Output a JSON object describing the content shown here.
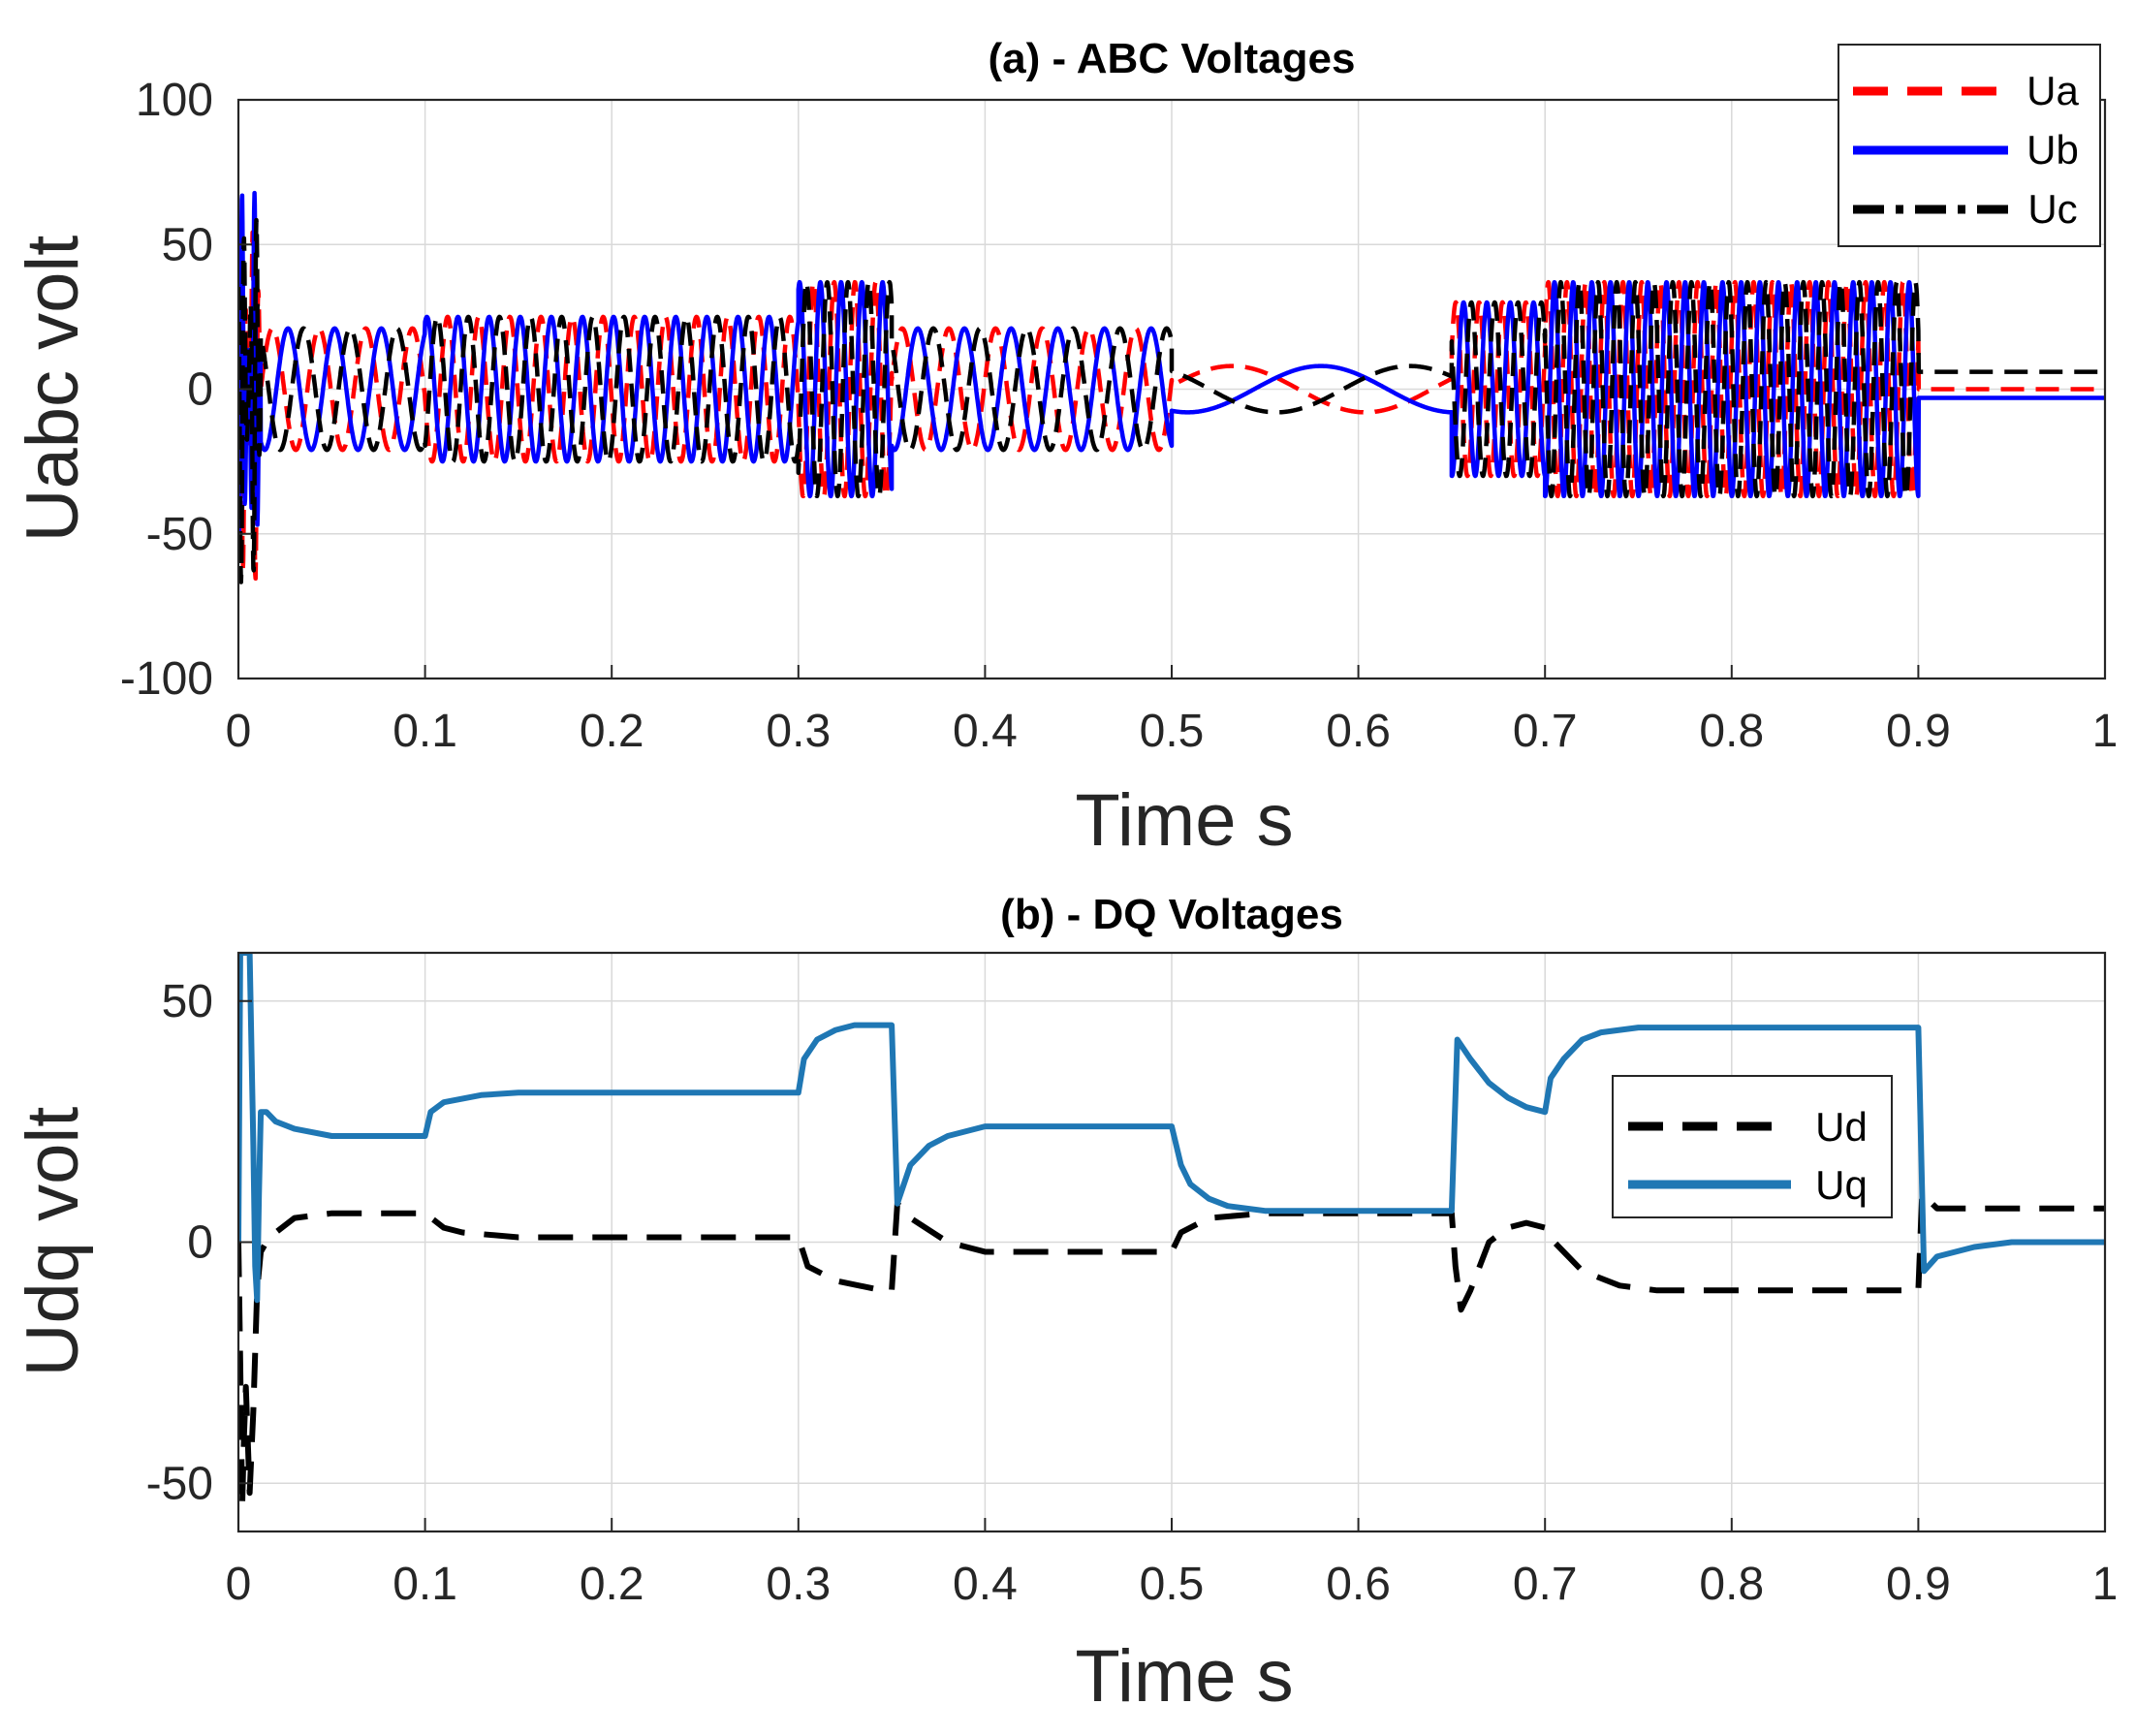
{
  "chart_data": [
    {
      "type": "line",
      "title": "(a) - ABC Voltages",
      "xlabel": "Time s",
      "ylabel": "Uabc volt",
      "xlim": [
        0,
        1
      ],
      "ylim": [
        -100,
        100
      ],
      "xticks": [
        0,
        0.1,
        0.2,
        0.3,
        0.4,
        0.5,
        0.6,
        0.7,
        0.8,
        0.9,
        1
      ],
      "yticks": [
        -100,
        -50,
        0,
        50,
        100
      ],
      "xtick_labels": [
        "0",
        "0.1",
        "0.2",
        "0.3",
        "0.4",
        "0.5",
        "0.6",
        "0.7",
        "0.8",
        "0.9",
        "1"
      ],
      "ytick_labels": [
        "-100",
        "-50",
        "0",
        "50",
        "100"
      ],
      "grid": true,
      "legend_position": "top-right",
      "initial_transient": {
        "t_end": 0.012,
        "peak": 68
      },
      "segments": [
        {
          "t0": 0.012,
          "t1": 0.1,
          "amplitude": 21,
          "freq_hz": 40,
          "offset": 0
        },
        {
          "t0": 0.1,
          "t1": 0.3,
          "amplitude": 25,
          "freq_hz": 60,
          "offset": 0
        },
        {
          "t0": 0.3,
          "t1": 0.35,
          "amplitude": 37,
          "freq_hz": 90,
          "offset": 0
        },
        {
          "t0": 0.35,
          "t1": 0.5,
          "amplitude": 21,
          "freq_hz": 40,
          "offset": 0
        },
        {
          "t0": 0.5,
          "t1": 0.65,
          "amplitude": 8,
          "freq_hz": 7,
          "offset": 0
        },
        {
          "t0": 0.65,
          "t1": 0.7,
          "amplitude": 30,
          "freq_hz": 80,
          "offset": 0
        },
        {
          "t0": 0.7,
          "t1": 0.9,
          "amplitude": 37,
          "freq_hz": 100,
          "offset": 0
        }
      ],
      "final_values": {
        "Ua": 0,
        "Ub": -3,
        "Uc": 6
      },
      "series": [
        {
          "name": "Ua",
          "color": "#ff0000",
          "style": "dashed",
          "phase_deg": 0
        },
        {
          "name": "Ub",
          "color": "#0000ff",
          "style": "solid",
          "phase_deg": -120
        },
        {
          "name": "Uc",
          "color": "#000000",
          "style": "dashdot",
          "phase_deg": 120
        }
      ]
    },
    {
      "type": "line",
      "title": "(b) - DQ Voltages",
      "xlabel": "Time s",
      "ylabel": "Udq volt",
      "xlim": [
        0,
        1
      ],
      "ylim": [
        -60,
        60
      ],
      "xticks": [
        0,
        0.1,
        0.2,
        0.3,
        0.4,
        0.5,
        0.6,
        0.7,
        0.8,
        0.9,
        1
      ],
      "yticks": [
        -50,
        0,
        50
      ],
      "xtick_labels": [
        "0",
        "0.1",
        "0.2",
        "0.3",
        "0.4",
        "0.5",
        "0.6",
        "0.7",
        "0.8",
        "0.9",
        "1"
      ],
      "ytick_labels": [
        "-50",
        "0",
        "50"
      ],
      "grid": true,
      "legend_position": "right",
      "series": [
        {
          "name": "Ud",
          "color": "#000000",
          "style": "dashed",
          "points": [
            [
              0,
              0
            ],
            [
              0.001,
              -25
            ],
            [
              0.002,
              -55
            ],
            [
              0.003,
              -40
            ],
            [
              0.004,
              -30
            ],
            [
              0.006,
              -52
            ],
            [
              0.008,
              -35
            ],
            [
              0.01,
              -10
            ],
            [
              0.012,
              -2
            ],
            [
              0.015,
              0
            ],
            [
              0.02,
              2
            ],
            [
              0.03,
              5
            ],
            [
              0.05,
              6
            ],
            [
              0.1,
              6
            ],
            [
              0.11,
              3
            ],
            [
              0.12,
              2
            ],
            [
              0.15,
              1
            ],
            [
              0.3,
              1
            ],
            [
              0.305,
              -5
            ],
            [
              0.32,
              -8
            ],
            [
              0.345,
              -10
            ],
            [
              0.35,
              -10
            ],
            [
              0.353,
              8
            ],
            [
              0.36,
              5
            ],
            [
              0.38,
              0
            ],
            [
              0.4,
              -2
            ],
            [
              0.5,
              -2
            ],
            [
              0.505,
              2
            ],
            [
              0.52,
              5
            ],
            [
              0.55,
              6
            ],
            [
              0.65,
              6
            ],
            [
              0.652,
              -5
            ],
            [
              0.655,
              -14
            ],
            [
              0.66,
              -10
            ],
            [
              0.67,
              0
            ],
            [
              0.68,
              3
            ],
            [
              0.69,
              4
            ],
            [
              0.7,
              3
            ],
            [
              0.705,
              0
            ],
            [
              0.72,
              -6
            ],
            [
              0.74,
              -9
            ],
            [
              0.76,
              -10
            ],
            [
              0.9,
              -10
            ],
            [
              0.902,
              10
            ],
            [
              0.91,
              7
            ],
            [
              1,
              7
            ]
          ]
        },
        {
          "name": "Uq",
          "color": "#1f77b4",
          "style": "solid",
          "points": [
            [
              0,
              0
            ],
            [
              0.001,
              60
            ],
            [
              0.002,
              60
            ],
            [
              0.006,
              60
            ],
            [
              0.008,
              20
            ],
            [
              0.009,
              -5
            ],
            [
              0.01,
              -12
            ],
            [
              0.011,
              10
            ],
            [
              0.012,
              27
            ],
            [
              0.015,
              27
            ],
            [
              0.02,
              25
            ],
            [
              0.03,
              23.5
            ],
            [
              0.05,
              22
            ],
            [
              0.1,
              22
            ],
            [
              0.103,
              27
            ],
            [
              0.11,
              29
            ],
            [
              0.13,
              30.5
            ],
            [
              0.15,
              31
            ],
            [
              0.3,
              31
            ],
            [
              0.303,
              38
            ],
            [
              0.31,
              42
            ],
            [
              0.32,
              44
            ],
            [
              0.33,
              45
            ],
            [
              0.35,
              45
            ],
            [
              0.353,
              8
            ],
            [
              0.36,
              16
            ],
            [
              0.37,
              20
            ],
            [
              0.38,
              22
            ],
            [
              0.4,
              24
            ],
            [
              0.5,
              24
            ],
            [
              0.505,
              16
            ],
            [
              0.51,
              12
            ],
            [
              0.52,
              9
            ],
            [
              0.53,
              7.5
            ],
            [
              0.55,
              6.5
            ],
            [
              0.65,
              6.5
            ],
            [
              0.653,
              42
            ],
            [
              0.66,
              38
            ],
            [
              0.67,
              33
            ],
            [
              0.68,
              30
            ],
            [
              0.69,
              28
            ],
            [
              0.7,
              27
            ],
            [
              0.703,
              34
            ],
            [
              0.71,
              38
            ],
            [
              0.72,
              42
            ],
            [
              0.73,
              43.5
            ],
            [
              0.75,
              44.5
            ],
            [
              0.9,
              44.5
            ],
            [
              0.903,
              -6
            ],
            [
              0.91,
              -3
            ],
            [
              0.93,
              -1
            ],
            [
              0.95,
              0
            ],
            [
              1,
              0
            ]
          ]
        }
      ]
    }
  ]
}
